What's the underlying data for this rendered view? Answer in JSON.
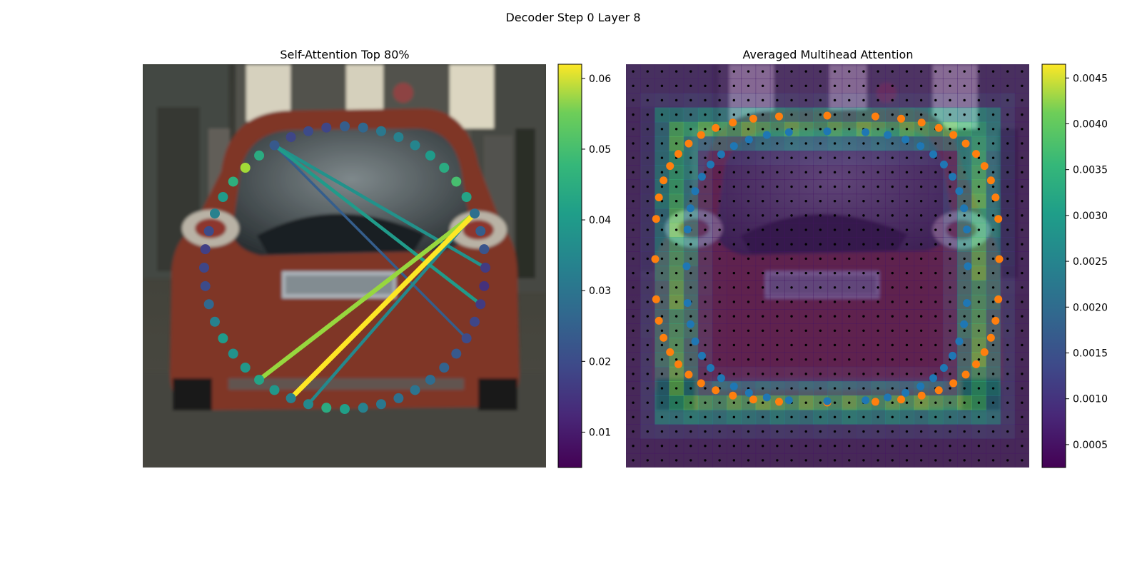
{
  "figure": {
    "suptitle": "Decoder Step 0 Layer 8"
  },
  "chart_data": [
    {
      "type": "scatter",
      "title": "Self-Attention Top 80%",
      "background": "photo of the rear of a red car on a street",
      "colormap": "viridis",
      "colorbar": {
        "ticks": [
          0.01,
          0.02,
          0.03,
          0.04,
          0.05,
          0.06
        ],
        "range": [
          0.005,
          0.062
        ]
      },
      "query_points_note": "ring of 48 query points around the car, colored by attention weight",
      "point_values": [
        0.022,
        0.024,
        0.028,
        0.03,
        0.031,
        0.036,
        0.04,
        0.045,
        0.038,
        0.026,
        0.022,
        0.02,
        0.015,
        0.013,
        0.015,
        0.017,
        0.018,
        0.021,
        0.023,
        0.025,
        0.027,
        0.026,
        0.028,
        0.03,
        0.037,
        0.04,
        0.032,
        0.03,
        0.035,
        0.038,
        0.035,
        0.034,
        0.036,
        0.03,
        0.024,
        0.018,
        0.017,
        0.016,
        0.018,
        0.03,
        0.036,
        0.041,
        0.054,
        0.04,
        0.021,
        0.017,
        0.018,
        0.017
      ],
      "attention_links": [
        {
          "from": 9,
          "to": 27,
          "value": 0.062
        },
        {
          "from": 9,
          "to": 29,
          "value": 0.053
        },
        {
          "from": 9,
          "to": 26,
          "value": 0.032
        },
        {
          "from": 44,
          "to": 12,
          "value": 0.034
        },
        {
          "from": 44,
          "to": 14,
          "value": 0.036
        },
        {
          "from": 44,
          "to": 16,
          "value": 0.022
        }
      ]
    },
    {
      "type": "heatmap",
      "title": "Averaged Multihead Attention",
      "background": "photo of the rear of a red car on a street",
      "colormap": "viridis",
      "grid": "28 x 28 cells with a reference point in each cell",
      "colorbar": {
        "ticks": [
          0.0005,
          0.001,
          0.0015,
          0.002,
          0.0025,
          0.003,
          0.0035,
          0.004,
          0.0045
        ],
        "range": [
          0.00025,
          0.00465
        ]
      },
      "series": [
        {
          "color": "#ff7f0e",
          "description": "outer ring of sampling points"
        },
        {
          "color": "#1f77b4",
          "description": "inner ring of sampling points"
        }
      ]
    }
  ],
  "colors": {
    "outer": "#ff7f0e",
    "inner": "#1f77b4",
    "car": "#8a3a2c"
  }
}
